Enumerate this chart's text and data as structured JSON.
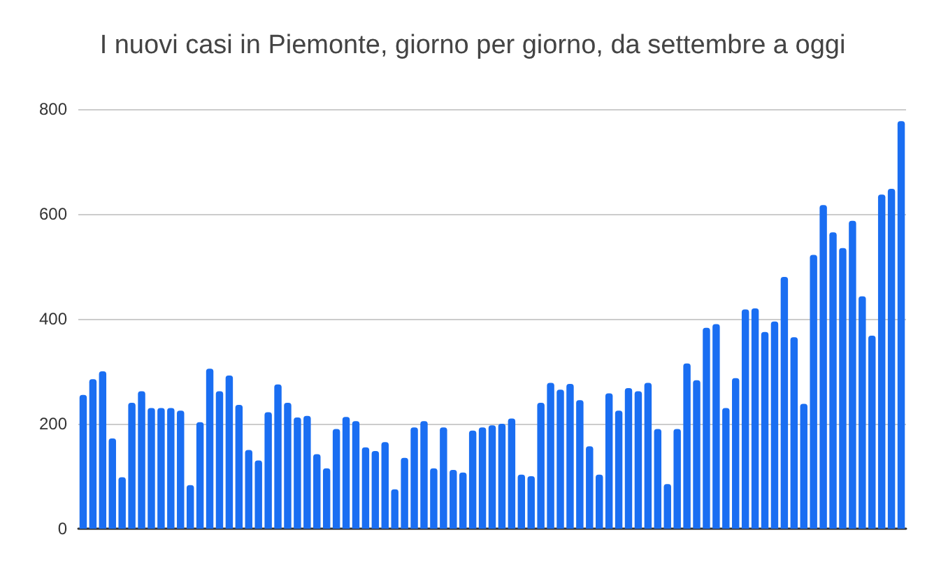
{
  "chart_data": {
    "type": "bar",
    "title": "I nuovi casi in Piemonte, giorno per giorno, da settembre a oggi",
    "categories": [
      null,
      null,
      null,
      null,
      null,
      null,
      null,
      null,
      null,
      null,
      null,
      null,
      null,
      null,
      null,
      null,
      null,
      null,
      null,
      null,
      null,
      null,
      null,
      null,
      null,
      null,
      null,
      null,
      null,
      null,
      null,
      null,
      null,
      null,
      null,
      null,
      null,
      null,
      null,
      null,
      null,
      null,
      null,
      null,
      null,
      null,
      null,
      null,
      null,
      null,
      null,
      null,
      null,
      null,
      null,
      null,
      null,
      null,
      null,
      null,
      null,
      null,
      null,
      null,
      null,
      null,
      null,
      null,
      null,
      null,
      null,
      null,
      null,
      null,
      null,
      null,
      null,
      null,
      null,
      null,
      null,
      null,
      null,
      null,
      null
    ],
    "values": [
      255,
      285,
      300,
      172,
      98,
      240,
      262,
      230,
      230,
      230,
      225,
      83,
      203,
      305,
      262,
      292,
      236,
      150,
      130,
      222,
      275,
      240,
      212,
      215,
      142,
      115,
      190,
      213,
      205,
      155,
      148,
      165,
      75,
      135,
      193,
      205,
      115,
      193,
      112,
      107,
      187,
      193,
      197,
      200,
      210,
      103,
      100,
      240,
      278,
      265,
      276,
      245,
      157,
      103,
      258,
      225,
      268,
      262,
      278,
      190,
      85,
      190,
      315,
      283,
      383,
      390,
      230,
      287,
      418,
      420,
      375,
      395,
      480,
      365,
      238,
      522,
      617,
      565,
      535,
      587,
      443,
      368,
      637,
      648,
      777
    ],
    "color": "#1a6ef2",
    "ylim": [
      0,
      800
    ],
    "yticks": [
      0,
      200,
      400,
      600,
      800
    ],
    "grid": "y"
  }
}
